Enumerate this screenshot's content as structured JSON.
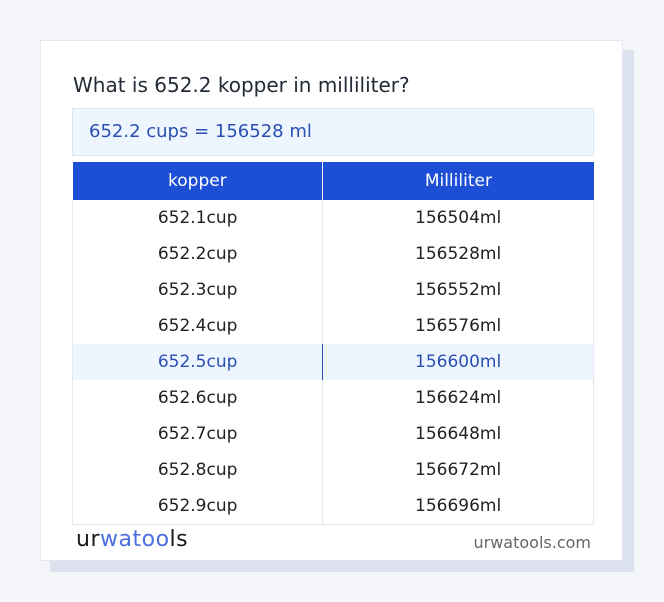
{
  "title": "What is 652.2 kopper in milliliter?",
  "result": "652.2 cups = 156528 ml",
  "table": {
    "headers": [
      "kopper",
      "Milliliter"
    ],
    "rows": [
      [
        "652.1cup",
        "156504ml"
      ],
      [
        "652.2cup",
        "156528ml"
      ],
      [
        "652.3cup",
        "156552ml"
      ],
      [
        "652.4cup",
        "156576ml"
      ],
      [
        "652.5cup",
        "156600ml"
      ],
      [
        "652.6cup",
        "156624ml"
      ],
      [
        "652.7cup",
        "156648ml"
      ],
      [
        "652.8cup",
        "156672ml"
      ],
      [
        "652.9cup",
        "156696ml"
      ]
    ],
    "highlighted_row": 4
  },
  "footer": {
    "logo": "urwatools",
    "logo_parts": [
      "ur",
      "wa",
      "too",
      "ls"
    ],
    "site": "urwatools.com"
  },
  "colors": {
    "accent": "#1c4fd6",
    "highlight_bg": "#edf5fe",
    "highlight_text": "#2a4fb0"
  }
}
